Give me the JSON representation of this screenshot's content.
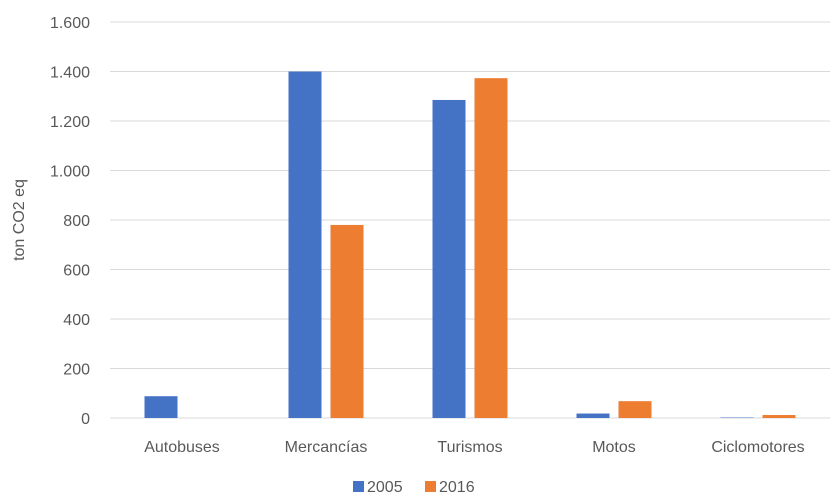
{
  "chart_data": {
    "type": "bar",
    "title": "",
    "xlabel": "",
    "ylabel": "ton CO2 eq",
    "categories": [
      "Autobuses",
      "Mercancías",
      "Turismos",
      "Motos",
      "Ciclomotores"
    ],
    "series": [
      {
        "name": "2005",
        "color": "#4472c4",
        "values": [
          88,
          1400,
          1285,
          18,
          2
        ]
      },
      {
        "name": "2016",
        "color": "#ed7d31",
        "values": [
          0,
          780,
          1373,
          68,
          12
        ]
      }
    ],
    "ylim": [
      0,
      1600
    ],
    "yticks": [
      0,
      200,
      400,
      600,
      800,
      1000,
      1200,
      1400,
      1600
    ],
    "ytick_labels": [
      "0",
      "200",
      "400",
      "600",
      "800",
      "1.000",
      "1.200",
      "1.400",
      "1.600"
    ],
    "grid": true,
    "legend": "bottom"
  }
}
